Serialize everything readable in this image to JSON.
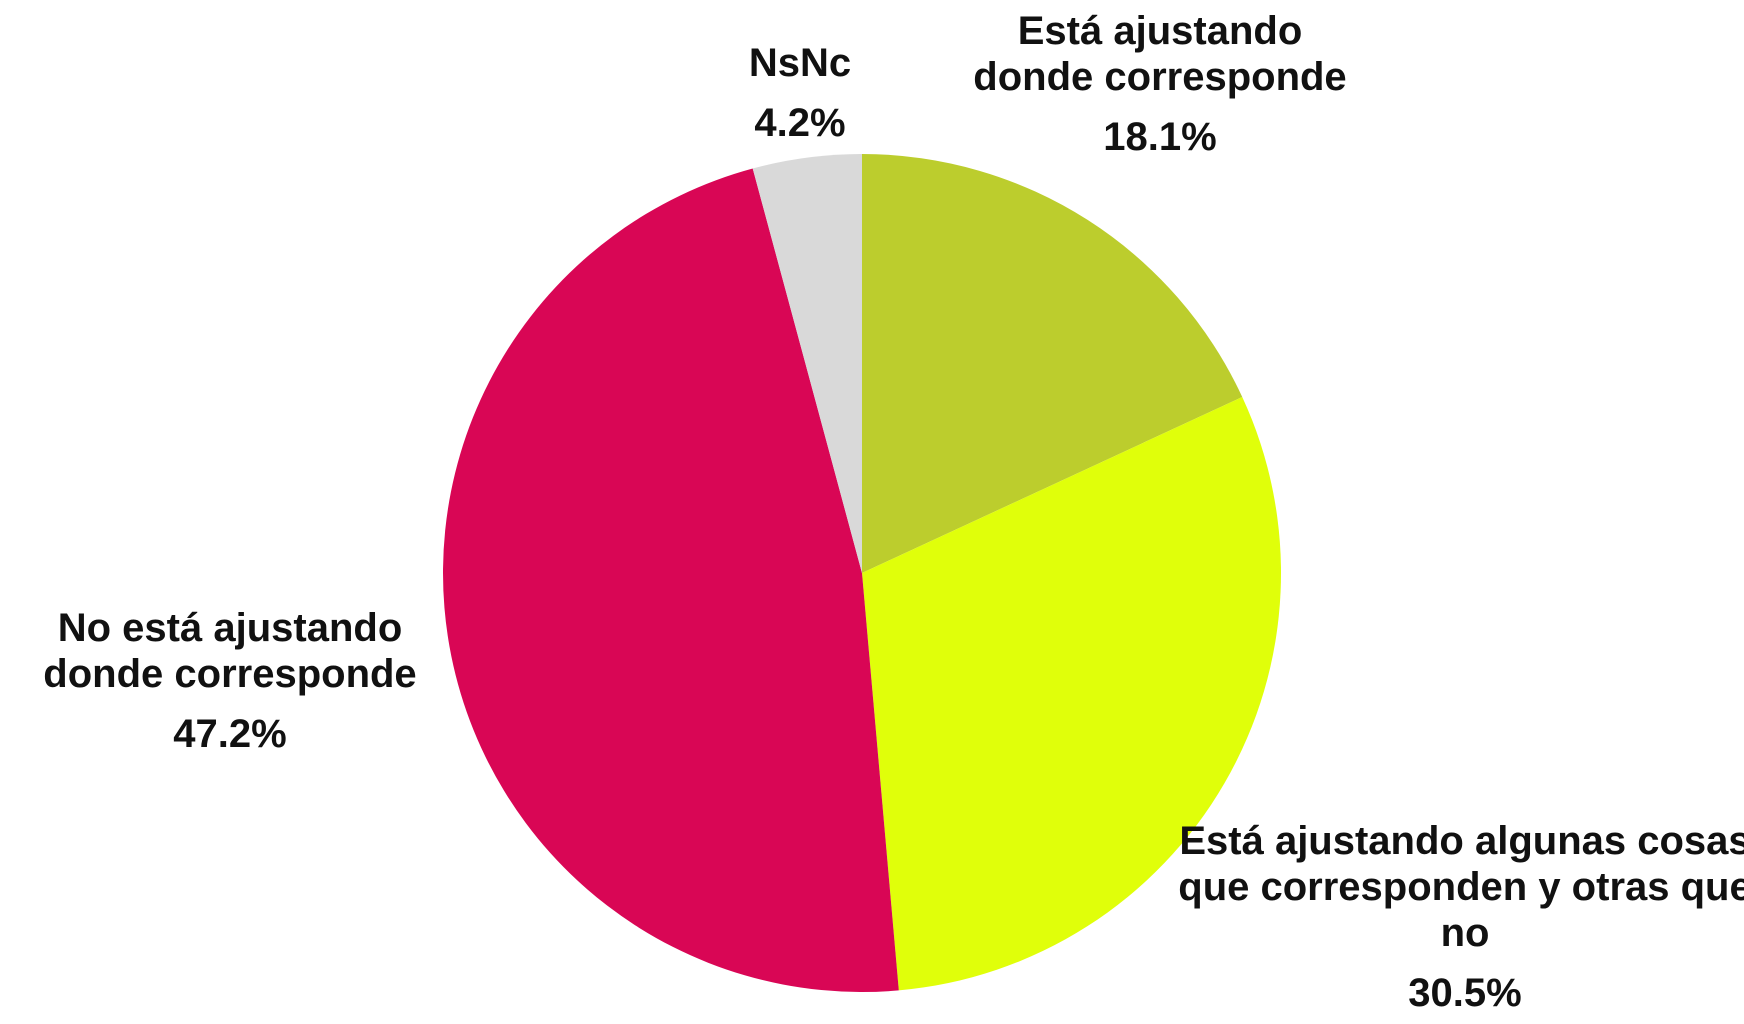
{
  "chart_data": {
    "type": "pie",
    "categories": [
      "Está ajustando donde corresponde",
      "Está ajustando algunas cosas que corresponden y otras que no",
      "No está ajustando donde corresponde",
      "NsNc"
    ],
    "values": [
      18.1,
      30.5,
      47.2,
      4.2
    ],
    "value_labels": [
      "18.1%",
      "30.5%",
      "47.2%",
      "4.2%"
    ],
    "colors": [
      "#bccd2d",
      "#e0ff0a",
      "#d90655",
      "#d9d9d9"
    ]
  }
}
